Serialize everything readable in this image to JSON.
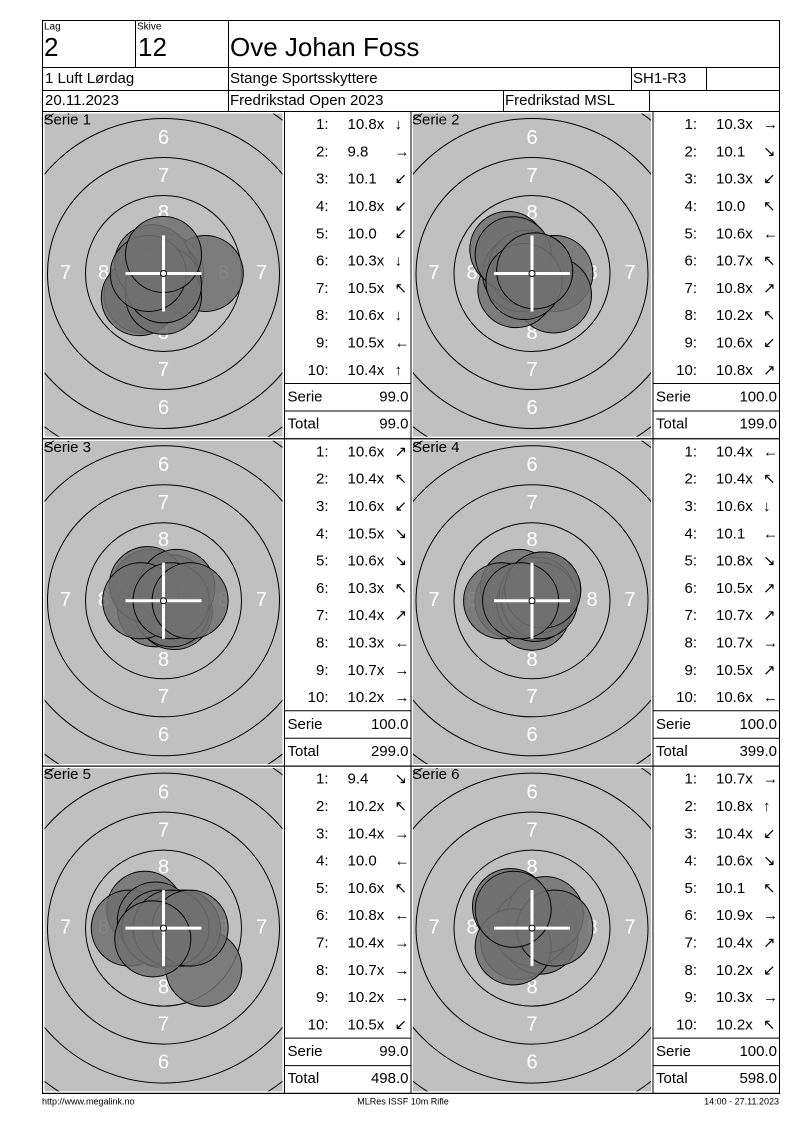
{
  "header": {
    "lag_label": "Lag",
    "lag": "2",
    "skive_label": "Skive",
    "skive": "12",
    "name": "Ove Johan Foss",
    "class": "1 Luft Lørdag",
    "club": "Stange Sportsskyttere",
    "code": "SH1-R3",
    "date": "20.11.2023",
    "event": "Fredrikstad Open 2023",
    "venue": "Fredrikstad MSL"
  },
  "target": {
    "ring_labels": [
      "6",
      "7",
      "8"
    ]
  },
  "series": [
    {
      "title": "Serie 1",
      "shots": [
        {
          "no": "1:",
          "score": "10.8x",
          "dir": "↓"
        },
        {
          "no": "2:",
          "score": "9.8",
          "dir": "→"
        },
        {
          "no": "3:",
          "score": "10.1",
          "dir": "↙"
        },
        {
          "no": "4:",
          "score": "10.8x",
          "dir": "↙"
        },
        {
          "no": "5:",
          "score": "10.0",
          "dir": "↙"
        },
        {
          "no": "6:",
          "score": "10.3x",
          "dir": "↓"
        },
        {
          "no": "7:",
          "score": "10.5x",
          "dir": "↖"
        },
        {
          "no": "8:",
          "score": "10.6x",
          "dir": "↓"
        },
        {
          "no": "9:",
          "score": "10.5x",
          "dir": "←"
        },
        {
          "no": "10:",
          "score": "10.4x",
          "dir": "↑"
        }
      ],
      "serie_label": "Serie",
      "serie": "99.0",
      "total_label": "Total",
      "total": "99.0"
    },
    {
      "title": "Serie 2",
      "shots": [
        {
          "no": "1:",
          "score": "10.3x",
          "dir": "→"
        },
        {
          "no": "2:",
          "score": "10.1",
          "dir": "↘"
        },
        {
          "no": "3:",
          "score": "10.3x",
          "dir": "↙"
        },
        {
          "no": "4:",
          "score": "10.0",
          "dir": "↖"
        },
        {
          "no": "5:",
          "score": "10.6x",
          "dir": "←"
        },
        {
          "no": "6:",
          "score": "10.7x",
          "dir": "↖"
        },
        {
          "no": "7:",
          "score": "10.8x",
          "dir": "↗"
        },
        {
          "no": "8:",
          "score": "10.2x",
          "dir": "↖"
        },
        {
          "no": "9:",
          "score": "10.6x",
          "dir": "↙"
        },
        {
          "no": "10:",
          "score": "10.8x",
          "dir": "↗"
        }
      ],
      "serie_label": "Serie",
      "serie": "100.0",
      "total_label": "Total",
      "total": "199.0"
    },
    {
      "title": "Serie 3",
      "shots": [
        {
          "no": "1:",
          "score": "10.6x",
          "dir": "↗"
        },
        {
          "no": "2:",
          "score": "10.4x",
          "dir": "↖"
        },
        {
          "no": "3:",
          "score": "10.6x",
          "dir": "↙"
        },
        {
          "no": "4:",
          "score": "10.5x",
          "dir": "↘"
        },
        {
          "no": "5:",
          "score": "10.6x",
          "dir": "↘"
        },
        {
          "no": "6:",
          "score": "10.3x",
          "dir": "↖"
        },
        {
          "no": "7:",
          "score": "10.4x",
          "dir": "↗"
        },
        {
          "no": "8:",
          "score": "10.3x",
          "dir": "←"
        },
        {
          "no": "9:",
          "score": "10.7x",
          "dir": "→"
        },
        {
          "no": "10:",
          "score": "10.2x",
          "dir": "→"
        }
      ],
      "serie_label": "Serie",
      "serie": "100.0",
      "total_label": "Total",
      "total": "299.0"
    },
    {
      "title": "Serie 4",
      "shots": [
        {
          "no": "1:",
          "score": "10.4x",
          "dir": "←"
        },
        {
          "no": "2:",
          "score": "10.4x",
          "dir": "↖"
        },
        {
          "no": "3:",
          "score": "10.6x",
          "dir": "↓"
        },
        {
          "no": "4:",
          "score": "10.1",
          "dir": "←"
        },
        {
          "no": "5:",
          "score": "10.8x",
          "dir": "↘"
        },
        {
          "no": "6:",
          "score": "10.5x",
          "dir": "↗"
        },
        {
          "no": "7:",
          "score": "10.7x",
          "dir": "↗"
        },
        {
          "no": "8:",
          "score": "10.7x",
          "dir": "→"
        },
        {
          "no": "9:",
          "score": "10.5x",
          "dir": "↗"
        },
        {
          "no": "10:",
          "score": "10.6x",
          "dir": "←"
        }
      ],
      "serie_label": "Serie",
      "serie": "100.0",
      "total_label": "Total",
      "total": "399.0"
    },
    {
      "title": "Serie 5",
      "shots": [
        {
          "no": "1:",
          "score": "9.4",
          "dir": "↘"
        },
        {
          "no": "2:",
          "score": "10.2x",
          "dir": "↖"
        },
        {
          "no": "3:",
          "score": "10.4x",
          "dir": "→"
        },
        {
          "no": "4:",
          "score": "10.0",
          "dir": "←"
        },
        {
          "no": "5:",
          "score": "10.6x",
          "dir": "↖"
        },
        {
          "no": "6:",
          "score": "10.8x",
          "dir": "←"
        },
        {
          "no": "7:",
          "score": "10.4x",
          "dir": "→"
        },
        {
          "no": "8:",
          "score": "10.7x",
          "dir": "→"
        },
        {
          "no": "9:",
          "score": "10.2x",
          "dir": "→"
        },
        {
          "no": "10:",
          "score": "10.5x",
          "dir": "↙"
        }
      ],
      "serie_label": "Serie",
      "serie": "99.0",
      "total_label": "Total",
      "total": "498.0"
    },
    {
      "title": "Serie 6",
      "shots": [
        {
          "no": "1:",
          "score": "10.7x",
          "dir": "→"
        },
        {
          "no": "2:",
          "score": "10.8x",
          "dir": "↑"
        },
        {
          "no": "3:",
          "score": "10.4x",
          "dir": "↙"
        },
        {
          "no": "4:",
          "score": "10.6x",
          "dir": "↘"
        },
        {
          "no": "5:",
          "score": "10.1",
          "dir": "↖"
        },
        {
          "no": "6:",
          "score": "10.9x",
          "dir": "→"
        },
        {
          "no": "7:",
          "score": "10.4x",
          "dir": "↗"
        },
        {
          "no": "8:",
          "score": "10.2x",
          "dir": "↙"
        },
        {
          "no": "9:",
          "score": "10.3x",
          "dir": "→"
        },
        {
          "no": "10:",
          "score": "10.2x",
          "dir": "↖"
        }
      ],
      "serie_label": "Serie",
      "serie": "100.0",
      "total_label": "Total",
      "total": "598.0"
    }
  ],
  "footer": {
    "left": "http://www.megalink.no",
    "center": "MLRes ISSF 10m Rifle",
    "right": "14:00 - 27.11.2023"
  }
}
